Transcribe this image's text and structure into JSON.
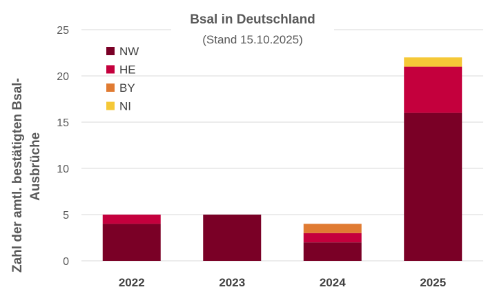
{
  "chart_data": {
    "type": "bar",
    "stacked": true,
    "title": "Bsal in Deutschland",
    "subtitle": "(Stand 15.10.2025)",
    "ylabel_lines": [
      "Zahl der amtl. bestätigten Bsal-",
      "Ausbrüche"
    ],
    "xlabel": "",
    "categories": [
      "2022",
      "2023",
      "2024",
      "2025"
    ],
    "ylim": [
      0,
      25
    ],
    "yticks": [
      0,
      5,
      10,
      15,
      20,
      25
    ],
    "grid": true,
    "legend_position": "top-left",
    "series": [
      {
        "name": "NW",
        "color": "#7a0026",
        "values": [
          4,
          5,
          2,
          16
        ]
      },
      {
        "name": "HE",
        "color": "#c4003d",
        "values": [
          1,
          0,
          1,
          5
        ]
      },
      {
        "name": "BY",
        "color": "#e07b32",
        "values": [
          0,
          0,
          1,
          0
        ]
      },
      {
        "name": "NI",
        "color": "#f5c837",
        "values": [
          0,
          0,
          0,
          1
        ]
      }
    ]
  }
}
